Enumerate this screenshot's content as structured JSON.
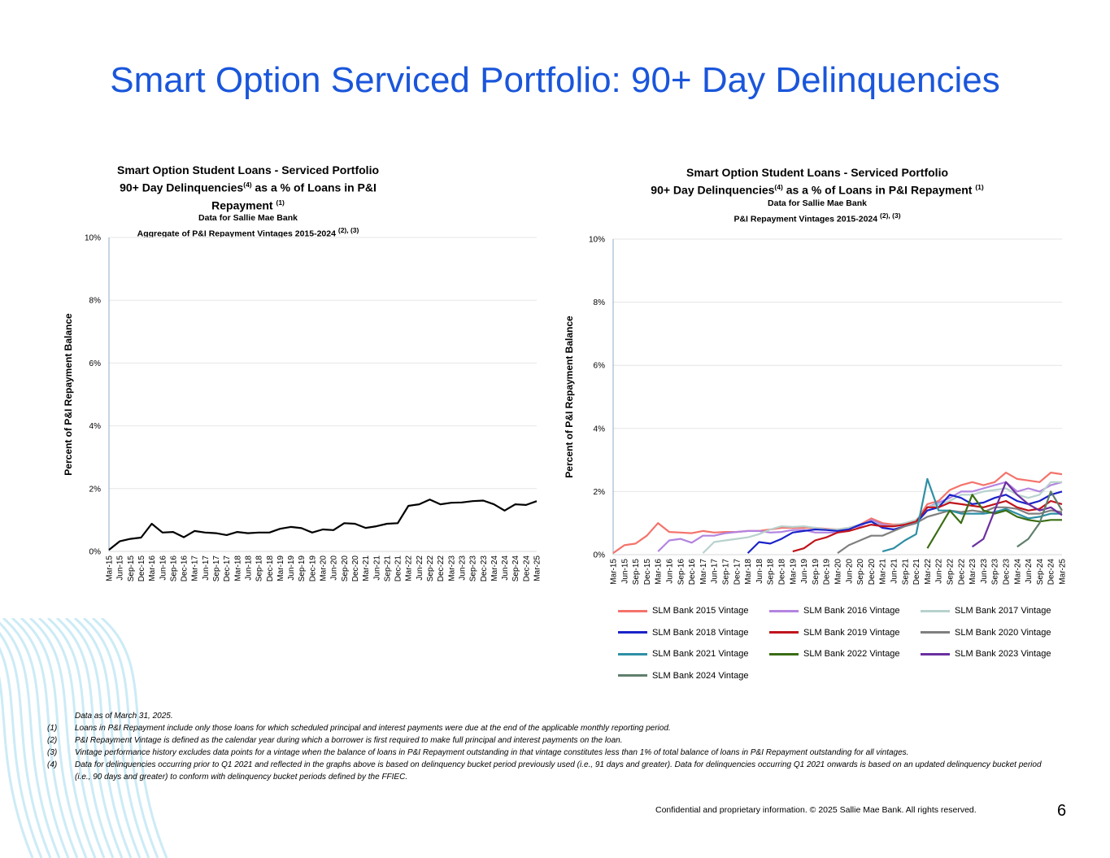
{
  "slide": {
    "title": "Smart Option Serviced Portfolio: 90+ Day Delinquencies",
    "page_number": "6",
    "confidential": "Confidential and proprietary information. © 2025 Sallie Mae Bank. All rights reserved."
  },
  "colors": {
    "title_blue": "#1a56db",
    "aggregate_line": "#000000",
    "gridline": "#e6e6e6"
  },
  "footnotes": [
    {
      "num": "",
      "text": "Data as of March 31, 2025."
    },
    {
      "num": "(1)",
      "text": "Loans in P&I Repayment include only those loans for which scheduled principal and interest payments were due at the end of the applicable monthly reporting period."
    },
    {
      "num": "(2)",
      "text": "P&I Repayment Vintage is defined as the calendar year during which a borrower is first required to make full principal and interest payments on the loan."
    },
    {
      "num": "(3)",
      "text": "Vintage performance history excludes data points for a vintage when the balance of loans in P&I Repayment outstanding in that vintage constitutes less than 1% of total balance of loans in P&I Repayment outstanding for all vintages."
    },
    {
      "num": "(4)",
      "text": "Data for delinquencies occurring prior to Q1 2021 and reflected in the graphs above is based on delinquency bucket period previously used (i.e., 91 days and greater).  Data for delinquencies occurring Q1 2021 onwards is based on an updated delinquency bucket period (i.e., 90 days and greater) to conform with delinquency bucket periods defined by the FFIEC."
    }
  ],
  "chart_data": [
    {
      "type": "line",
      "title_line1": "Smart Option Student Loans - Serviced Portfolio",
      "title_line2": "90+ Day Delinquencies",
      "title_line2_sup": "(4)",
      "title_line2_rest": " as a % of Loans in P&I Repayment ",
      "title_line2_sup2": "(1)",
      "title_line3": "Data for Sallie Mae Bank",
      "title_line4": "Aggregate of P&I Repayment Vintages 2015-2024 ",
      "title_line4_sup": "(2), (3)",
      "ylabel": "Percent of P&I Repayment  Balance",
      "ylim": [
        0,
        10
      ],
      "yticks": [
        "0%",
        "2%",
        "4%",
        "6%",
        "8%",
        "10%"
      ],
      "categories": [
        "Mar-15",
        "Jun-15",
        "Sep-15",
        "Dec-15",
        "Mar-16",
        "Jun-16",
        "Sep-16",
        "Dec-16",
        "Mar-17",
        "Jun-17",
        "Sep-17",
        "Dec-17",
        "Mar-18",
        "Jun-18",
        "Sep-18",
        "Dec-18",
        "Mar-19",
        "Jun-19",
        "Sep-19",
        "Dec-19",
        "Mar-20",
        "Jun-20",
        "Sep-20",
        "Dec-20",
        "Mar-21",
        "Jun-21",
        "Sep-21",
        "Dec-21",
        "Mar-22",
        "Jun-22",
        "Sep-22",
        "Dec-22",
        "Mar-23",
        "Jun-23",
        "Sep-23",
        "Dec-23",
        "Mar-24",
        "Jun-24",
        "Sep-24",
        "Dec-24",
        "Mar-25"
      ],
      "series": [
        {
          "name": "Aggregate",
          "color": "#000000",
          "values": [
            0.05,
            0.32,
            0.4,
            0.44,
            0.88,
            0.6,
            0.62,
            0.45,
            0.65,
            0.6,
            0.58,
            0.52,
            0.62,
            0.58,
            0.6,
            0.6,
            0.72,
            0.78,
            0.74,
            0.6,
            0.7,
            0.68,
            0.9,
            0.88,
            0.75,
            0.8,
            0.88,
            0.9,
            1.45,
            1.5,
            1.65,
            1.5,
            1.55,
            1.56,
            1.6,
            1.62,
            1.5,
            1.3,
            1.5,
            1.48,
            1.6
          ]
        }
      ]
    },
    {
      "type": "line",
      "title_line1": "Smart Option Student Loans - Serviced Portfolio",
      "title_line2": "90+ Day Delinquencies",
      "title_line2_sup": "(4)",
      "title_line2_rest": " as a % of Loans in P&I Repayment ",
      "title_line2_sup2": "(1)",
      "title_line3": "Data for Sallie Mae Bank",
      "title_line4": "P&I Repayment Vintages 2015-2024 ",
      "title_line4_sup": "(2), (3)",
      "ylabel": "Percent of P&I Repayment  Balance",
      "ylim": [
        0,
        10
      ],
      "yticks": [
        "0%",
        "2%",
        "4%",
        "6%",
        "8%",
        "10%"
      ],
      "categories": [
        "Mar-15",
        "Jun-15",
        "Sep-15",
        "Dec-15",
        "Mar-16",
        "Jun-16",
        "Sep-16",
        "Dec-16",
        "Mar-17",
        "Jun-17",
        "Sep-17",
        "Dec-17",
        "Mar-18",
        "Jun-18",
        "Sep-18",
        "Dec-18",
        "Mar-19",
        "Jun-19",
        "Sep-19",
        "Dec-19",
        "Mar-20",
        "Jun-20",
        "Sep-20",
        "Dec-20",
        "Mar-21",
        "Jun-21",
        "Sep-21",
        "Dec-21",
        "Mar-22",
        "Jun-22",
        "Sep-22",
        "Dec-22",
        "Mar-23",
        "Jun-23",
        "Sep-23",
        "Dec-23",
        "Mar-24",
        "Jun-24",
        "Sep-24",
        "Dec-24",
        "Mar-25"
      ],
      "series": [
        {
          "name": "SLM Bank 2015 Vintage",
          "color": "#f4736b",
          "values": [
            0.05,
            0.3,
            0.35,
            0.6,
            1.0,
            0.72,
            0.7,
            0.68,
            0.75,
            0.7,
            0.72,
            0.72,
            0.75,
            0.75,
            0.8,
            0.85,
            0.85,
            0.85,
            0.85,
            0.82,
            0.8,
            0.85,
            0.95,
            1.15,
            1.0,
            0.95,
            0.98,
            1.05,
            1.6,
            1.7,
            2.05,
            2.2,
            2.3,
            2.2,
            2.3,
            2.6,
            2.4,
            2.35,
            2.3,
            2.6,
            2.55
          ]
        },
        {
          "name": "SLM Bank 2016 Vintage",
          "color": "#b384e0",
          "values": [
            null,
            null,
            null,
            null,
            0.1,
            0.45,
            0.5,
            0.38,
            0.6,
            0.6,
            0.68,
            0.72,
            0.75,
            0.75,
            0.7,
            0.72,
            0.78,
            0.78,
            0.7,
            0.7,
            0.7,
            0.85,
            0.9,
            1.1,
            0.95,
            0.9,
            1.0,
            1.05,
            1.5,
            1.65,
            1.8,
            2.0,
            2.0,
            2.1,
            2.2,
            2.3,
            2.0,
            2.1,
            2.0,
            2.2,
            2.3
          ]
        },
        {
          "name": "SLM Bank 2017 Vintage",
          "color": "#b8d2cd",
          "values": [
            null,
            null,
            null,
            null,
            null,
            null,
            null,
            null,
            0.05,
            0.4,
            0.45,
            0.5,
            0.55,
            0.65,
            0.8,
            0.9,
            0.88,
            0.9,
            0.85,
            0.8,
            0.8,
            0.85,
            0.95,
            1.05,
            0.9,
            0.92,
            1.0,
            1.1,
            1.5,
            1.6,
            1.7,
            1.9,
            1.9,
            2.0,
            2.05,
            2.1,
            1.9,
            1.8,
            1.9,
            2.3,
            2.3
          ]
        },
        {
          "name": "SLM Bank 2018 Vintage",
          "color": "#1a23c8",
          "values": [
            null,
            null,
            null,
            null,
            null,
            null,
            null,
            null,
            null,
            null,
            null,
            null,
            0.05,
            0.4,
            0.35,
            0.5,
            0.7,
            0.75,
            0.8,
            0.78,
            0.75,
            0.8,
            0.95,
            1.05,
            0.85,
            0.8,
            0.9,
            1.0,
            1.4,
            1.5,
            1.9,
            1.8,
            1.6,
            1.65,
            1.8,
            1.9,
            1.7,
            1.6,
            1.7,
            1.9,
            2.0
          ]
        },
        {
          "name": "SLM Bank 2019 Vintage",
          "color": "#c0141c",
          "values": [
            null,
            null,
            null,
            null,
            null,
            null,
            null,
            null,
            null,
            null,
            null,
            null,
            null,
            null,
            null,
            null,
            0.1,
            0.2,
            0.45,
            0.55,
            0.7,
            0.75,
            0.85,
            0.95,
            0.9,
            0.9,
            0.95,
            1.05,
            1.5,
            1.5,
            1.65,
            1.6,
            1.55,
            1.5,
            1.6,
            1.7,
            1.5,
            1.4,
            1.45,
            1.7,
            1.6
          ]
        },
        {
          "name": "SLM Bank 2020 Vintage",
          "color": "#7f7f7f",
          "values": [
            null,
            null,
            null,
            null,
            null,
            null,
            null,
            null,
            null,
            null,
            null,
            null,
            null,
            null,
            null,
            null,
            null,
            null,
            null,
            null,
            0.05,
            0.3,
            0.45,
            0.6,
            0.6,
            0.75,
            0.9,
            1.0,
            1.2,
            1.3,
            1.4,
            1.35,
            1.4,
            1.35,
            1.5,
            1.5,
            1.45,
            1.3,
            1.3,
            1.4,
            1.35
          ]
        },
        {
          "name": "SLM Bank 2021 Vintage",
          "color": "#2e8fa5",
          "values": [
            null,
            null,
            null,
            null,
            null,
            null,
            null,
            null,
            null,
            null,
            null,
            null,
            null,
            null,
            null,
            null,
            null,
            null,
            null,
            null,
            null,
            null,
            null,
            null,
            0.1,
            0.2,
            0.45,
            0.65,
            2.4,
            1.4,
            1.4,
            1.3,
            1.3,
            1.3,
            1.35,
            1.45,
            1.3,
            1.15,
            1.2,
            1.3,
            1.3
          ]
        },
        {
          "name": "SLM Bank 2022 Vintage",
          "color": "#3a6d14",
          "values": [
            null,
            null,
            null,
            null,
            null,
            null,
            null,
            null,
            null,
            null,
            null,
            null,
            null,
            null,
            null,
            null,
            null,
            null,
            null,
            null,
            null,
            null,
            null,
            null,
            null,
            null,
            null,
            null,
            0.2,
            0.8,
            1.4,
            1.0,
            1.9,
            1.4,
            1.3,
            1.4,
            1.2,
            1.1,
            1.05,
            1.1,
            1.1
          ]
        },
        {
          "name": "SLM Bank 2023 Vintage",
          "color": "#6b2fa0",
          "values": [
            null,
            null,
            null,
            null,
            null,
            null,
            null,
            null,
            null,
            null,
            null,
            null,
            null,
            null,
            null,
            null,
            null,
            null,
            null,
            null,
            null,
            null,
            null,
            null,
            null,
            null,
            null,
            null,
            null,
            null,
            null,
            null,
            0.25,
            0.5,
            1.4,
            2.3,
            1.9,
            1.6,
            1.4,
            1.5,
            1.25
          ]
        },
        {
          "name": "SLM Bank 2024 Vintage",
          "color": "#5f7f6c",
          "values": [
            null,
            null,
            null,
            null,
            null,
            null,
            null,
            null,
            null,
            null,
            null,
            null,
            null,
            null,
            null,
            null,
            null,
            null,
            null,
            null,
            null,
            null,
            null,
            null,
            null,
            null,
            null,
            null,
            null,
            null,
            null,
            null,
            null,
            null,
            null,
            null,
            0.25,
            0.5,
            1.0,
            2.0,
            1.4
          ]
        }
      ]
    }
  ]
}
